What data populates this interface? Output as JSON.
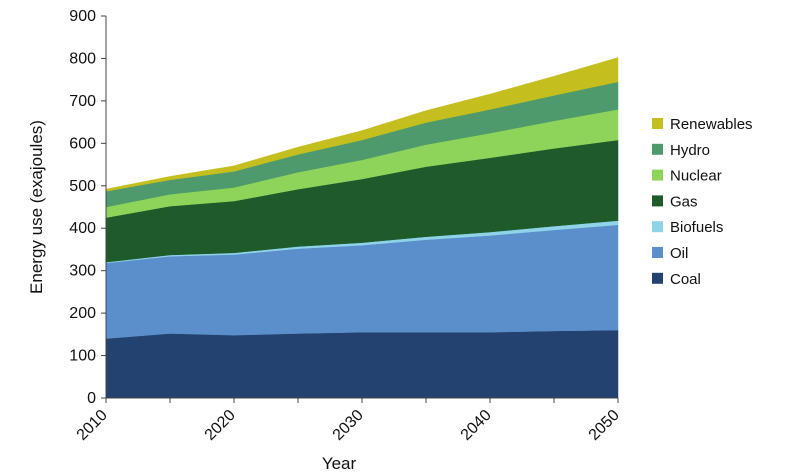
{
  "chart_data": {
    "type": "area",
    "stacked": true,
    "title": "",
    "xlabel": "Year",
    "ylabel": "Energy use (exajoules)",
    "xlim": [
      2010,
      2050
    ],
    "ylim": [
      0,
      900
    ],
    "x_ticks": [
      2010,
      2020,
      2030,
      2040,
      2050
    ],
    "y_ticks": [
      0,
      100,
      200,
      300,
      400,
      500,
      600,
      700,
      800,
      900
    ],
    "grid": false,
    "legend_position": "right",
    "x": [
      2010,
      2015,
      2020,
      2025,
      2030,
      2035,
      2040,
      2045,
      2050
    ],
    "series": [
      {
        "name": "Coal",
        "color": "#23426f",
        "values": [
          140,
          152,
          148,
          152,
          155,
          155,
          155,
          158,
          160
        ]
      },
      {
        "name": "Oil",
        "color": "#5b8fcb",
        "values": [
          178,
          182,
          190,
          200,
          205,
          218,
          228,
          238,
          248
        ]
      },
      {
        "name": "Biofuels",
        "color": "#8fd3e8",
        "values": [
          2,
          3,
          4,
          5,
          6,
          7,
          8,
          9,
          10
        ]
      },
      {
        "name": "Gas",
        "color": "#1f5a2a",
        "values": [
          105,
          115,
          122,
          135,
          150,
          165,
          175,
          183,
          190
        ]
      },
      {
        "name": "Nuclear",
        "color": "#8fd45a",
        "values": [
          25,
          28,
          32,
          40,
          45,
          52,
          58,
          65,
          72
        ]
      },
      {
        "name": "Hydro",
        "color": "#4f9a6c",
        "values": [
          37,
          34,
          38,
          42,
          47,
          52,
          56,
          60,
          65
        ]
      },
      {
        "name": "Renewables",
        "color": "#c4bf1e",
        "values": [
          5,
          8,
          13,
          17,
          22,
          28,
          36,
          45,
          57
        ]
      }
    ]
  }
}
